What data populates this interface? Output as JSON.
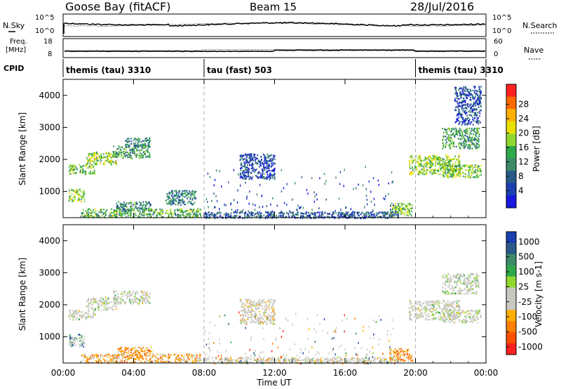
{
  "header": {
    "station": "Goose Bay (fitACF)",
    "beam": "Beam 15",
    "date": "28/Jul/2016"
  },
  "noise_panel": {
    "left_label": "N.Sky",
    "right_label": "N.Search",
    "left_ticks": [
      "10^5",
      "10^0"
    ],
    "right_ticks": [
      "10^5",
      "10^0"
    ]
  },
  "freq_panel": {
    "left_label_line1": "Freq.",
    "left_label_line2": "[MHz]",
    "left_ticks": [
      "18",
      "8"
    ],
    "right_label": "Nave",
    "right_ticks": [
      "60",
      "0"
    ]
  },
  "cpid": {
    "label": "CPID",
    "segments": [
      {
        "name": "themis (tau) 3310",
        "start_h": 0,
        "end_h": 8
      },
      {
        "name": "tau (fast) 503",
        "start_h": 8,
        "end_h": 20
      },
      {
        "name": "themis (tau) 3310",
        "start_h": 20,
        "end_h": 24
      }
    ]
  },
  "x_axis": {
    "label": "Time UT",
    "ticks": [
      "00:00",
      "04:00",
      "08:00",
      "12:00",
      "16:00",
      "20:00",
      "00:00"
    ]
  },
  "power_panel": {
    "ylabel": "Slant Range [km]",
    "yticks": [
      "1000",
      "2000",
      "3000",
      "4000"
    ],
    "colorbar_label": "Power [dB]",
    "colorbar_ticks": [
      "28",
      "24",
      "20",
      "16",
      "12",
      "8",
      "4"
    ],
    "colors": [
      "#ff2020",
      "#ff6a00",
      "#ffb000",
      "#e8e000",
      "#90d830",
      "#2ea84a",
      "#3c8a6a",
      "#2a5a8a",
      "#1a3fb0",
      "#1818e0"
    ]
  },
  "velocity_panel": {
    "ylabel": "Slant Range [km]",
    "yticks": [
      "1000",
      "2000",
      "3000",
      "4000"
    ],
    "colorbar_label": "Velocity [m s-1]",
    "colorbar_ticks": [
      "1000",
      "500",
      "100",
      "25",
      "-25",
      "-100",
      "-500",
      "-1000"
    ],
    "colors": [
      "#1a3fb0",
      "#2a5a8a",
      "#3c8a6a",
      "#2ea84a",
      "#90d830",
      "#c8c8c0",
      "#c8c8c0",
      "#ffb000",
      "#ff8000",
      "#ff5000",
      "#ff2020"
    ]
  },
  "chart_data": {
    "type": "heatmap",
    "xlabel": "Time UT",
    "ylabel": "Slant Range [km]",
    "xlim_hours": [
      0,
      24
    ],
    "ylim_km": [
      180,
      4500
    ],
    "power_regions": [
      {
        "t0": 0.3,
        "t1": 1.2,
        "r0": 700,
        "r1": 1100,
        "level": 0.55
      },
      {
        "t0": 0.3,
        "t1": 1.8,
        "r0": 1550,
        "r1": 1850,
        "level": 0.5
      },
      {
        "t0": 1.3,
        "t1": 3.0,
        "r0": 1850,
        "r1": 2250,
        "level": 0.55
      },
      {
        "t0": 2.8,
        "t1": 4.9,
        "r0": 2050,
        "r1": 2450,
        "level": 0.4
      },
      {
        "t0": 3.5,
        "t1": 4.9,
        "r0": 2400,
        "r1": 2700,
        "level": 0.3
      },
      {
        "t0": 1.0,
        "t1": 7.8,
        "r0": 200,
        "r1": 480,
        "level": 0.45
      },
      {
        "t0": 3.0,
        "t1": 5.0,
        "r0": 400,
        "r1": 700,
        "level": 0.35
      },
      {
        "t0": 5.8,
        "t1": 7.5,
        "r0": 600,
        "r1": 1050,
        "level": 0.3
      },
      {
        "t0": 8.0,
        "t1": 19.0,
        "r0": 200,
        "r1": 380,
        "level": 0.2
      },
      {
        "t0": 10.0,
        "t1": 12.0,
        "r0": 1400,
        "r1": 2200,
        "level": 0.15
      },
      {
        "t0": 18.5,
        "t1": 19.8,
        "r0": 250,
        "r1": 650,
        "level": 0.55
      },
      {
        "t0": 19.6,
        "t1": 22.5,
        "r0": 1550,
        "r1": 2150,
        "level": 0.55
      },
      {
        "t0": 21.5,
        "t1": 23.7,
        "r0": 1450,
        "r1": 1850,
        "level": 0.5
      },
      {
        "t0": 21.5,
        "t1": 23.6,
        "r0": 2350,
        "r1": 3000,
        "level": 0.4
      },
      {
        "t0": 22.2,
        "t1": 23.7,
        "r0": 3100,
        "r1": 4300,
        "level": 0.15
      }
    ],
    "velocity_regions": [
      {
        "t0": 0.3,
        "t1": 1.2,
        "r0": 700,
        "r1": 1100,
        "level": 0.15
      },
      {
        "t0": 0.3,
        "t1": 1.8,
        "r0": 1550,
        "r1": 1850,
        "level": 0.5
      },
      {
        "t0": 1.3,
        "t1": 3.0,
        "r0": 1850,
        "r1": 2250,
        "level": 0.5
      },
      {
        "t0": 2.8,
        "t1": 4.9,
        "r0": 2050,
        "r1": 2450,
        "level": 0.5
      },
      {
        "t0": 1.0,
        "t1": 7.8,
        "r0": 200,
        "r1": 480,
        "level": 0.7
      },
      {
        "t0": 3.0,
        "t1": 5.0,
        "r0": 400,
        "r1": 700,
        "level": 0.75
      },
      {
        "t0": 8.0,
        "t1": 19.0,
        "r0": 200,
        "r1": 380,
        "level": 0.6
      },
      {
        "t0": 10.0,
        "t1": 12.0,
        "r0": 1400,
        "r1": 2200,
        "level": 0.6
      },
      {
        "t0": 18.5,
        "t1": 19.8,
        "r0": 250,
        "r1": 650,
        "level": 0.75
      },
      {
        "t0": 19.6,
        "t1": 22.5,
        "r0": 1550,
        "r1": 2150,
        "level": 0.5
      },
      {
        "t0": 21.5,
        "t1": 23.7,
        "r0": 1450,
        "r1": 1850,
        "level": 0.5
      },
      {
        "t0": 21.5,
        "t1": 23.6,
        "r0": 2350,
        "r1": 3000,
        "level": 0.45
      }
    ]
  }
}
